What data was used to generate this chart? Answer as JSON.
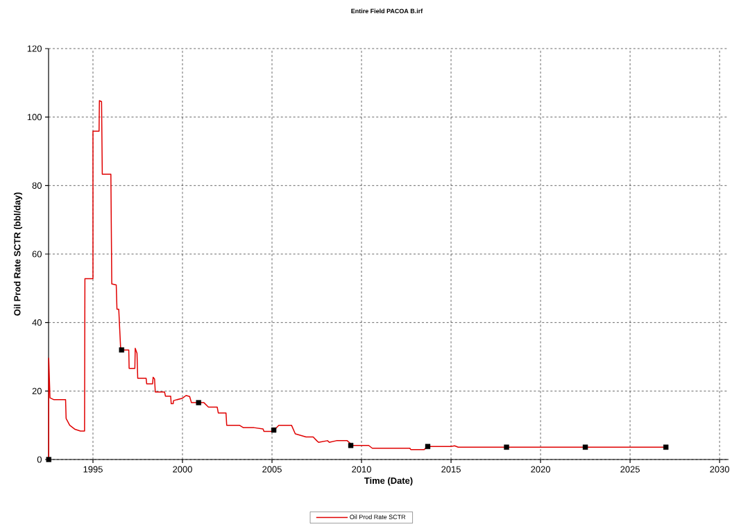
{
  "chart_data": {
    "type": "line",
    "title": "Entire Field PACOA B.irf",
    "xlabel": "Time (Date)",
    "ylabel": "Oil Prod Rate SCTR (bbl/day)",
    "xlim": [
      1992.52,
      2030.5
    ],
    "xticks": [
      1995,
      2000,
      2005,
      2010,
      2015,
      2020,
      2025,
      2030
    ],
    "ylim": [
      0,
      120
    ],
    "yticks": [
      0,
      20,
      40,
      60,
      80,
      100,
      120
    ],
    "grid": true,
    "legend": "bottom",
    "series": [
      {
        "name": "Oil Prod Rate SCTR",
        "color": "#e00000",
        "line_style": "solid",
        "marker": "none",
        "x": [
          1992.53,
          1992.53,
          1992.6,
          1992.8,
          1993.47,
          1993.5,
          1993.7,
          1994.0,
          1994.3,
          1994.53,
          1994.55,
          1995.0,
          1995.0,
          1995.34,
          1995.36,
          1995.48,
          1995.52,
          1996.0,
          1996.05,
          1996.3,
          1996.34,
          1996.44,
          1996.55,
          1997.0,
          1997.02,
          1997.34,
          1997.36,
          1997.46,
          1997.5,
          1997.97,
          1998.0,
          1998.33,
          1998.36,
          1998.44,
          1998.48,
          1999.0,
          1999.05,
          1999.34,
          1999.37,
          1999.48,
          1999.5,
          2000.0,
          2000.2,
          2000.4,
          2000.5,
          2001.2,
          2001.45,
          2001.94,
          2002.0,
          2002.43,
          2002.47,
          2003.18,
          2003.4,
          2004.0,
          2004.5,
          2004.55,
          2005.05,
          2005.38,
          2006.09,
          2006.3,
          2006.9,
          2007.3,
          2007.5,
          2007.6,
          2008.1,
          2008.2,
          2008.6,
          2009.2,
          2009.5,
          2010.4,
          2010.6,
          2012.7,
          2012.75,
          2013.5,
          2013.7,
          2015.0,
          2015.2,
          2015.4,
          2027.0
        ],
        "values": [
          0,
          29.6,
          18.0,
          17.5,
          17.5,
          12.0,
          10.0,
          8.8,
          8.3,
          8.3,
          52.8,
          52.8,
          95.9,
          95.9,
          104.8,
          104.5,
          83.3,
          83.3,
          51.3,
          51.0,
          43.9,
          43.9,
          32.0,
          32.0,
          26.6,
          26.6,
          32.5,
          31.0,
          23.7,
          23.7,
          22.1,
          22.1,
          24.0,
          23.5,
          19.7,
          19.7,
          18.5,
          18.5,
          16.3,
          16.3,
          17.2,
          17.9,
          18.7,
          18.4,
          16.6,
          16.6,
          15.3,
          15.3,
          13.6,
          13.6,
          10.0,
          10.0,
          9.3,
          9.3,
          8.9,
          8.2,
          8.2,
          10.0,
          10.0,
          7.5,
          6.6,
          6.6,
          5.5,
          5.0,
          5.5,
          5.0,
          5.5,
          5.5,
          4.1,
          4.1,
          3.3,
          3.3,
          2.9,
          2.9,
          3.8,
          3.8,
          4.0,
          3.6,
          3.6
        ]
      },
      {
        "type": "scatter",
        "color": "#000000",
        "marker": "square",
        "x": [
          1992.53,
          1996.6,
          2000.9,
          2005.1,
          2009.4,
          2013.7,
          2018.1,
          2022.5,
          2027.0
        ],
        "values": [
          0,
          32.0,
          16.6,
          8.6,
          4.1,
          3.8,
          3.6,
          3.6,
          3.6
        ]
      }
    ]
  }
}
